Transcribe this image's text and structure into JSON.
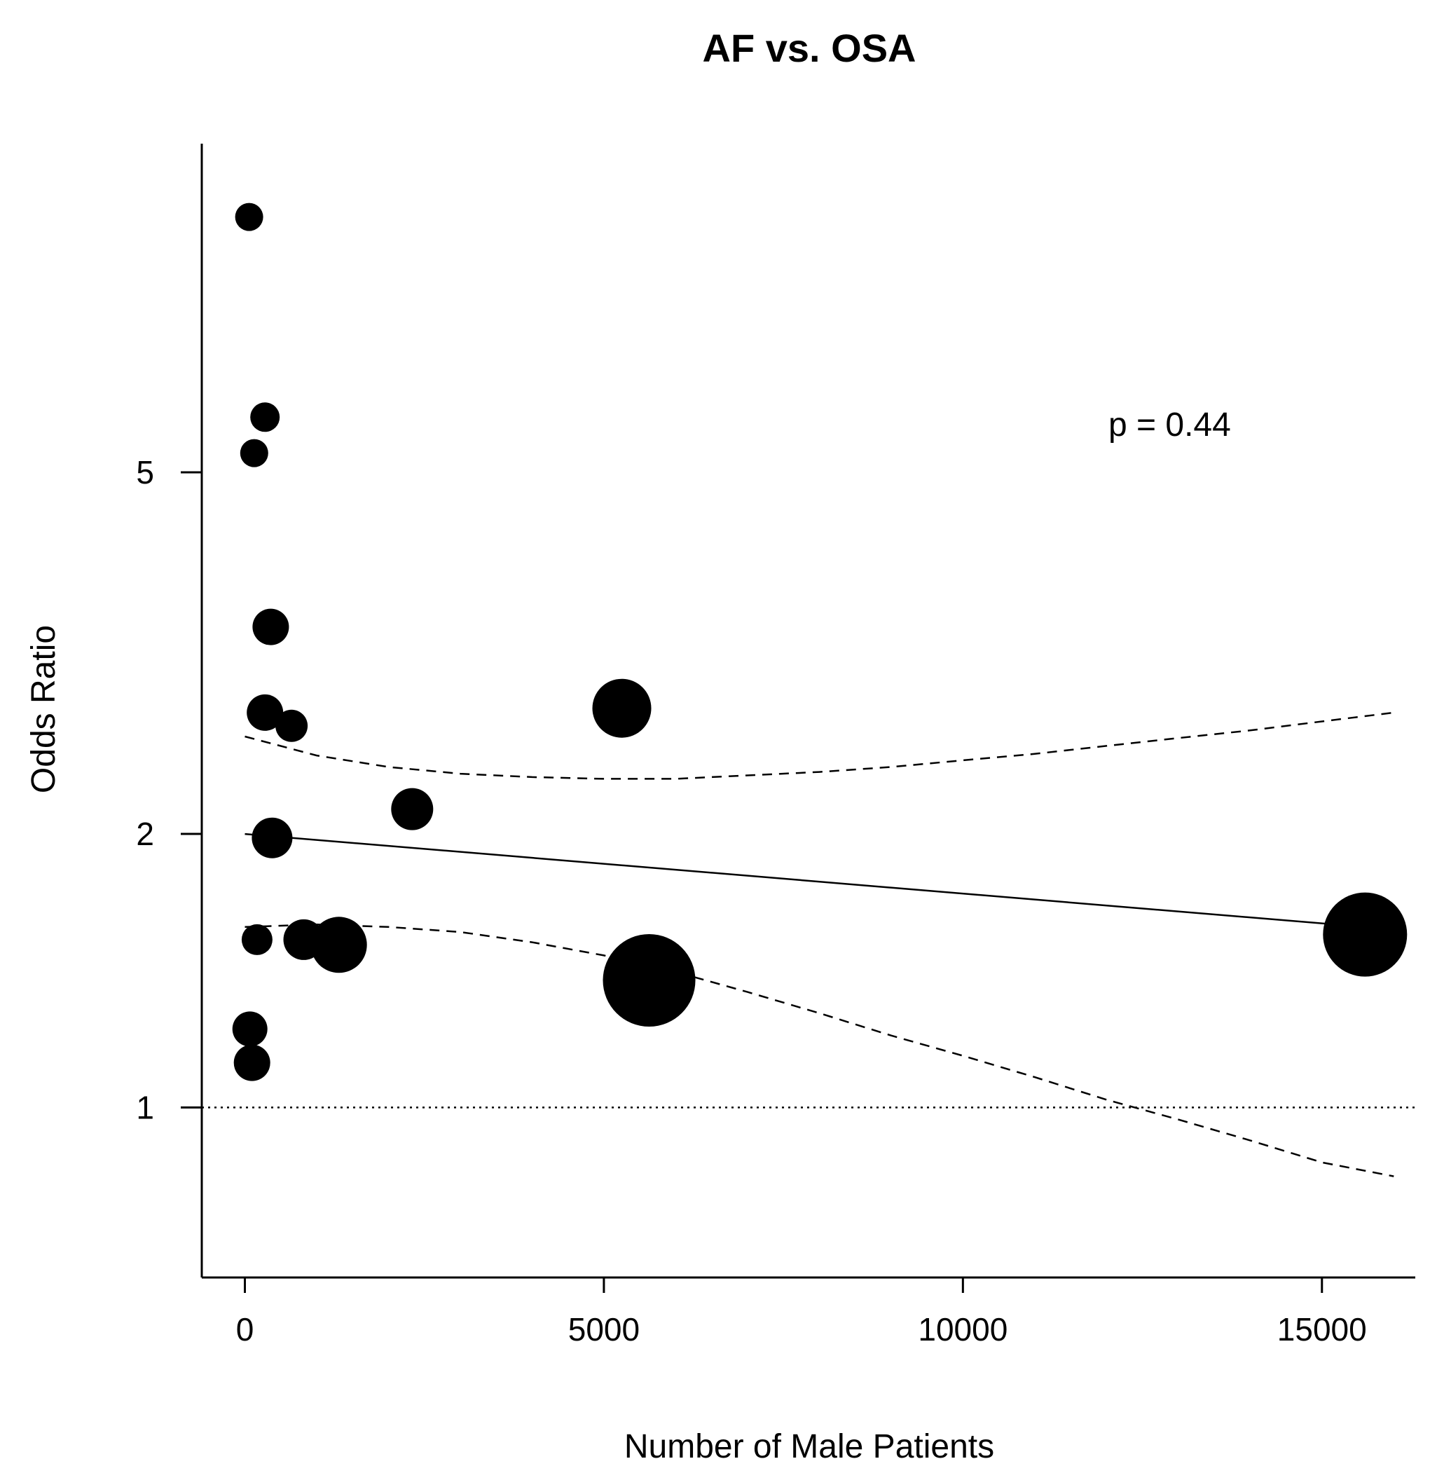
{
  "chart_data": {
    "type": "scatter",
    "title": "AF vs. OSA",
    "xlabel": "Number of Male Patients",
    "ylabel": "Odds Ratio",
    "y_scale": "log",
    "xlim": [
      -600,
      16300
    ],
    "ylim": [
      0.65,
      11.5
    ],
    "x_ticks": [
      0,
      5000,
      10000,
      15000
    ],
    "x_tick_labels": [
      "0",
      "5000",
      "10000",
      "15000"
    ],
    "y_ticks": [
      1,
      2,
      5
    ],
    "y_tick_labels": [
      "1",
      "2",
      "5"
    ],
    "annotation": "p =  0.44",
    "reference_line": {
      "y": 1,
      "style": "dotted"
    },
    "points": [
      {
        "x": 60,
        "y": 9.55,
        "weight": 1.0
      },
      {
        "x": 280,
        "y": 5.75,
        "weight": 1.05
      },
      {
        "x": 130,
        "y": 5.25,
        "weight": 1.0
      },
      {
        "x": 360,
        "y": 3.38,
        "weight": 1.3
      },
      {
        "x": 280,
        "y": 2.72,
        "weight": 1.3
      },
      {
        "x": 650,
        "y": 2.63,
        "weight": 1.15
      },
      {
        "x": 5250,
        "y": 2.75,
        "weight": 2.1
      },
      {
        "x": 2330,
        "y": 2.13,
        "weight": 1.5
      },
      {
        "x": 380,
        "y": 1.98,
        "weight": 1.45
      },
      {
        "x": 170,
        "y": 1.53,
        "weight": 1.1
      },
      {
        "x": 820,
        "y": 1.53,
        "weight": 1.45
      },
      {
        "x": 1310,
        "y": 1.51,
        "weight": 2.0
      },
      {
        "x": 5630,
        "y": 1.38,
        "weight": 3.3
      },
      {
        "x": 15600,
        "y": 1.55,
        "weight": 3.0
      },
      {
        "x": 70,
        "y": 1.22,
        "weight": 1.25
      },
      {
        "x": 100,
        "y": 1.12,
        "weight": 1.3
      }
    ],
    "series": [
      {
        "name": "meta-regression fit",
        "style": "solid",
        "x": [
          0,
          15600
        ],
        "y": [
          2.0,
          1.58
        ]
      },
      {
        "name": "upper 95% CI",
        "style": "dashed",
        "x": [
          0,
          1000,
          2000,
          3000,
          4000,
          5000,
          6000,
          7000,
          8000,
          9000,
          10000,
          11000,
          12000,
          13000,
          14000,
          15000,
          16000
        ],
        "y": [
          2.56,
          2.44,
          2.37,
          2.33,
          2.31,
          2.3,
          2.3,
          2.32,
          2.34,
          2.37,
          2.41,
          2.45,
          2.5,
          2.55,
          2.6,
          2.66,
          2.72
        ]
      },
      {
        "name": "lower 95% CI",
        "style": "dashed",
        "x": [
          0,
          1000,
          2000,
          3000,
          4000,
          5000,
          6000,
          7000,
          8000,
          9000,
          10000,
          11000,
          12000,
          13000,
          14000,
          15000,
          16000
        ],
        "y": [
          1.58,
          1.59,
          1.58,
          1.56,
          1.52,
          1.47,
          1.41,
          1.34,
          1.27,
          1.2,
          1.14,
          1.08,
          1.02,
          0.97,
          0.92,
          0.87,
          0.84
        ]
      }
    ]
  }
}
